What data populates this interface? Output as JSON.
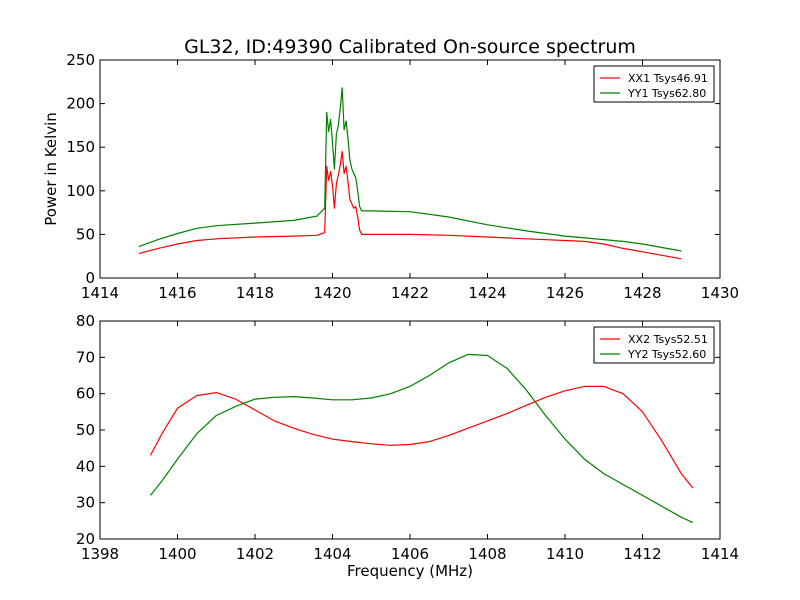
{
  "chart_data": [
    {
      "type": "line",
      "title": "GL32, ID:49390 Calibrated On-source spectrum",
      "xlabel": "",
      "ylabel": "Power in Kelvin",
      "xlim": [
        1414,
        1430
      ],
      "ylim": [
        0,
        250
      ],
      "xticks": [
        1414,
        1416,
        1418,
        1420,
        1422,
        1424,
        1426,
        1428,
        1430
      ],
      "yticks": [
        0,
        50,
        100,
        150,
        200,
        250
      ],
      "legend": "top-right",
      "grid": false,
      "series": [
        {
          "name": "XX1 Tsys46.91",
          "color": "#ff0000",
          "x": [
            1415.0,
            1415.5,
            1416.0,
            1416.5,
            1417.0,
            1418.0,
            1419.0,
            1419.6,
            1419.8,
            1419.85,
            1419.9,
            1419.95,
            1420.0,
            1420.05,
            1420.1,
            1420.15,
            1420.2,
            1420.25,
            1420.3,
            1420.35,
            1420.4,
            1420.45,
            1420.5,
            1420.55,
            1420.6,
            1420.65,
            1420.7,
            1420.75,
            1421.0,
            1422.0,
            1423.0,
            1424.0,
            1425.0,
            1426.0,
            1426.5,
            1427.0,
            1427.5,
            1428.0,
            1428.5,
            1429.0
          ],
          "y": [
            28,
            34,
            39,
            43,
            45,
            47,
            48,
            49,
            52,
            128,
            112,
            122,
            106,
            80,
            108,
            118,
            130,
            145,
            120,
            128,
            110,
            90,
            85,
            80,
            82,
            70,
            55,
            50,
            50,
            50,
            49,
            47,
            45,
            43,
            42,
            39,
            34,
            30,
            26,
            22
          ]
        },
        {
          "name": "YY1 Tsys62.80",
          "color": "#008000",
          "x": [
            1415.0,
            1415.5,
            1416.0,
            1416.5,
            1417.0,
            1418.0,
            1419.0,
            1419.6,
            1419.8,
            1419.85,
            1419.9,
            1419.95,
            1420.0,
            1420.05,
            1420.1,
            1420.15,
            1420.2,
            1420.25,
            1420.3,
            1420.35,
            1420.4,
            1420.45,
            1420.5,
            1420.55,
            1420.6,
            1420.65,
            1420.7,
            1420.75,
            1421.0,
            1422.0,
            1423.0,
            1424.0,
            1425.0,
            1426.0,
            1426.5,
            1427.0,
            1427.5,
            1428.0,
            1428.5,
            1429.0
          ],
          "y": [
            36,
            44,
            51,
            57,
            60,
            63,
            66,
            71,
            80,
            190,
            168,
            182,
            155,
            125,
            165,
            175,
            195,
            218,
            170,
            180,
            160,
            135,
            125,
            120,
            115,
            100,
            82,
            77,
            77,
            76,
            70,
            61,
            54,
            48,
            46,
            44,
            42,
            39,
            35,
            31
          ]
        }
      ]
    },
    {
      "type": "line",
      "title": "",
      "xlabel": "Frequency (MHz)",
      "ylabel": "",
      "xlim": [
        1398,
        1414
      ],
      "ylim": [
        20,
        80
      ],
      "xticks": [
        1398,
        1400,
        1402,
        1404,
        1406,
        1408,
        1410,
        1412,
        1414
      ],
      "yticks": [
        20,
        30,
        40,
        50,
        60,
        70,
        80
      ],
      "legend": "top-right",
      "grid": false,
      "series": [
        {
          "name": "XX2 Tsys52.51",
          "color": "#ff0000",
          "x": [
            1399.3,
            1399.6,
            1400.0,
            1400.5,
            1401.0,
            1401.5,
            1402.0,
            1402.5,
            1403.0,
            1403.5,
            1404.0,
            1404.5,
            1405.0,
            1405.5,
            1406.0,
            1406.5,
            1407.0,
            1407.5,
            1408.0,
            1408.5,
            1409.0,
            1409.5,
            1410.0,
            1410.5,
            1411.0,
            1411.5,
            1412.0,
            1412.5,
            1413.0,
            1413.3
          ],
          "y": [
            43,
            49,
            56,
            59.5,
            60.3,
            58.5,
            55.5,
            52.5,
            50.5,
            48.8,
            47.5,
            46.8,
            46.2,
            45.8,
            46,
            46.8,
            48.5,
            50.5,
            52.5,
            54.5,
            56.8,
            59,
            60.8,
            62,
            62,
            60,
            55,
            47,
            38,
            34
          ]
        },
        {
          "name": "YY2 Tsys52.60",
          "color": "#008000",
          "x": [
            1399.3,
            1399.6,
            1400.0,
            1400.5,
            1401.0,
            1401.5,
            1402.0,
            1402.5,
            1403.0,
            1403.5,
            1404.0,
            1404.5,
            1405.0,
            1405.5,
            1406.0,
            1406.5,
            1407.0,
            1407.5,
            1408.0,
            1408.5,
            1409.0,
            1409.5,
            1410.0,
            1410.5,
            1411.0,
            1411.5,
            1412.0,
            1412.5,
            1413.0,
            1413.3
          ],
          "y": [
            32,
            36,
            42,
            49,
            54,
            56.5,
            58.5,
            59,
            59.2,
            58.8,
            58.3,
            58.3,
            58.8,
            60,
            62,
            65,
            68.5,
            70.8,
            70.5,
            67,
            61,
            54,
            47.5,
            42,
            38,
            35,
            32,
            29,
            26,
            24.5
          ]
        }
      ]
    }
  ]
}
